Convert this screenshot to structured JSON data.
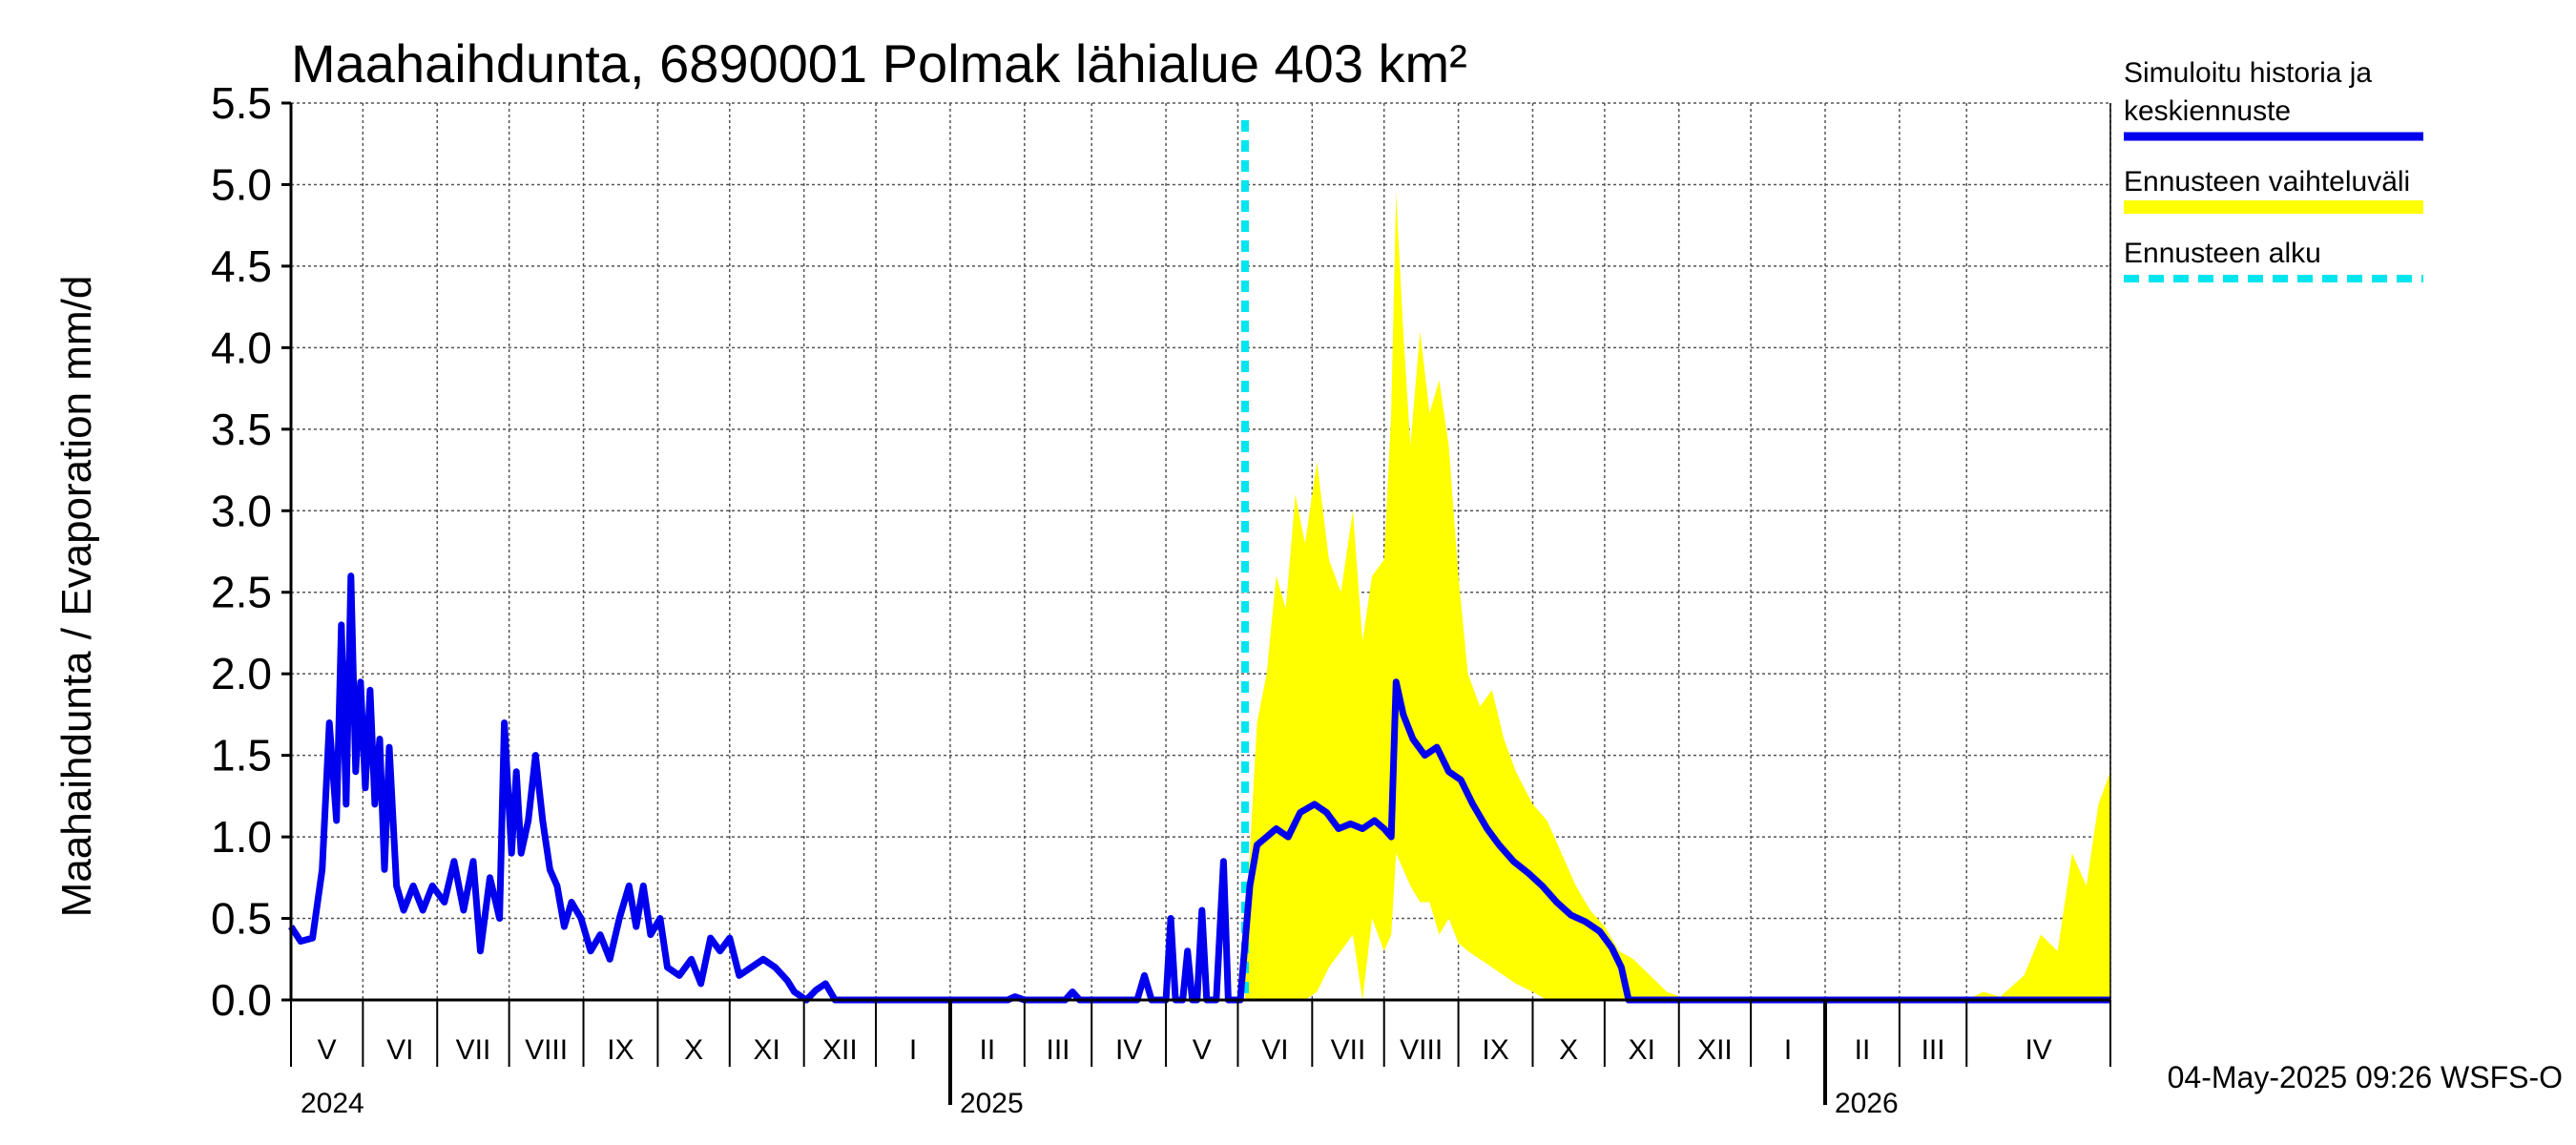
{
  "chart_data": {
    "type": "line",
    "title": "Maahaihdunta, 6890001 Polmak lähialue 403 km²",
    "ylabel": "Maahaihdunta / Evaporation   mm/d",
    "ylim": [
      0,
      5.5
    ],
    "yticks": [
      "0.0",
      "0.5",
      "1.0",
      "1.5",
      "2.0",
      "2.5",
      "3.0",
      "3.5",
      "4.0",
      "4.5",
      "5.0",
      "5.5"
    ],
    "x_range": [
      "2024-04-01",
      "2026-04-30"
    ],
    "grid": true,
    "legend_position": "right",
    "months": [
      "V",
      "VI",
      "VII",
      "VIII",
      "IX",
      "X",
      "XI",
      "XII",
      "I",
      "II",
      "III",
      "IV",
      "V",
      "VI",
      "VII",
      "VIII",
      "IX",
      "X",
      "XI",
      "XII",
      "I",
      "II",
      "III",
      "IV"
    ],
    "years": [
      "2024",
      "2025",
      "2026"
    ],
    "forecast_start": "2025-05-04",
    "timestamp": "04-May-2025 09:26 WSFS-O",
    "series": [
      {
        "name": "Simuloitu historia ja keskiennuste",
        "color": "#0000ee",
        "points": [
          [
            "2024-04-01",
            0.45
          ],
          [
            "2024-04-05",
            0.36
          ],
          [
            "2024-04-10",
            0.38
          ],
          [
            "2024-04-14",
            0.8
          ],
          [
            "2024-04-17",
            1.7
          ],
          [
            "2024-04-20",
            1.1
          ],
          [
            "2024-04-22",
            2.3
          ],
          [
            "2024-04-24",
            1.2
          ],
          [
            "2024-04-26",
            2.6
          ],
          [
            "2024-04-28",
            1.4
          ],
          [
            "2024-04-30",
            1.95
          ],
          [
            "2024-05-02",
            1.3
          ],
          [
            "2024-05-04",
            1.9
          ],
          [
            "2024-05-06",
            1.2
          ],
          [
            "2024-05-08",
            1.6
          ],
          [
            "2024-05-10",
            0.8
          ],
          [
            "2024-05-12",
            1.55
          ],
          [
            "2024-05-15",
            0.7
          ],
          [
            "2024-05-18",
            0.55
          ],
          [
            "2024-05-22",
            0.7
          ],
          [
            "2024-05-26",
            0.55
          ],
          [
            "2024-05-30",
            0.7
          ],
          [
            "2024-06-04",
            0.6
          ],
          [
            "2024-06-08",
            0.85
          ],
          [
            "2024-06-12",
            0.55
          ],
          [
            "2024-06-16",
            0.85
          ],
          [
            "2024-06-19",
            0.3
          ],
          [
            "2024-06-23",
            0.75
          ],
          [
            "2024-06-27",
            0.5
          ],
          [
            "2024-06-29",
            1.7
          ],
          [
            "2024-07-02",
            0.9
          ],
          [
            "2024-07-04",
            1.4
          ],
          [
            "2024-07-06",
            0.9
          ],
          [
            "2024-07-09",
            1.1
          ],
          [
            "2024-07-12",
            1.5
          ],
          [
            "2024-07-15",
            1.1
          ],
          [
            "2024-07-18",
            0.8
          ],
          [
            "2024-07-21",
            0.7
          ],
          [
            "2024-07-24",
            0.45
          ],
          [
            "2024-07-27",
            0.6
          ],
          [
            "2024-07-31",
            0.5
          ],
          [
            "2024-08-04",
            0.3
          ],
          [
            "2024-08-08",
            0.4
          ],
          [
            "2024-08-12",
            0.25
          ],
          [
            "2024-08-16",
            0.5
          ],
          [
            "2024-08-20",
            0.7
          ],
          [
            "2024-08-23",
            0.45
          ],
          [
            "2024-08-26",
            0.7
          ],
          [
            "2024-08-29",
            0.4
          ],
          [
            "2024-09-02",
            0.5
          ],
          [
            "2024-09-05",
            0.2
          ],
          [
            "2024-09-10",
            0.15
          ],
          [
            "2024-09-15",
            0.25
          ],
          [
            "2024-09-19",
            0.1
          ],
          [
            "2024-09-23",
            0.38
          ],
          [
            "2024-09-27",
            0.3
          ],
          [
            "2024-10-01",
            0.38
          ],
          [
            "2024-10-05",
            0.15
          ],
          [
            "2024-10-10",
            0.2
          ],
          [
            "2024-10-15",
            0.25
          ],
          [
            "2024-10-20",
            0.2
          ],
          [
            "2024-10-25",
            0.12
          ],
          [
            "2024-10-28",
            0.05
          ],
          [
            "2024-11-02",
            0.0
          ],
          [
            "2024-11-06",
            0.06
          ],
          [
            "2024-11-10",
            0.1
          ],
          [
            "2024-11-14",
            0.0
          ],
          [
            "2025-01-25",
            0.0
          ],
          [
            "2025-01-28",
            0.02
          ],
          [
            "2025-02-01",
            0.0
          ],
          [
            "2025-02-18",
            0.0
          ],
          [
            "2025-02-21",
            0.05
          ],
          [
            "2025-02-24",
            0.0
          ],
          [
            "2025-03-20",
            0.0
          ],
          [
            "2025-03-23",
            0.15
          ],
          [
            "2025-03-26",
            0.0
          ],
          [
            "2025-04-01",
            0.0
          ],
          [
            "2025-04-03",
            0.5
          ],
          [
            "2025-04-05",
            0.0
          ],
          [
            "2025-04-08",
            0.0
          ],
          [
            "2025-04-10",
            0.3
          ],
          [
            "2025-04-12",
            0.0
          ],
          [
            "2025-04-14",
            0.0
          ],
          [
            "2025-04-16",
            0.55
          ],
          [
            "2025-04-18",
            0.0
          ],
          [
            "2025-04-22",
            0.0
          ],
          [
            "2025-04-25",
            0.85
          ],
          [
            "2025-04-27",
            0.0
          ],
          [
            "2025-05-02",
            0.0
          ],
          [
            "2025-05-04",
            0.35
          ],
          [
            "2025-05-06",
            0.7
          ],
          [
            "2025-05-09",
            0.95
          ],
          [
            "2025-05-13",
            1.0
          ],
          [
            "2025-05-17",
            1.05
          ],
          [
            "2025-05-22",
            1.0
          ],
          [
            "2025-05-27",
            1.15
          ],
          [
            "2025-06-02",
            1.2
          ],
          [
            "2025-06-07",
            1.15
          ],
          [
            "2025-06-12",
            1.05
          ],
          [
            "2025-06-17",
            1.08
          ],
          [
            "2025-06-22",
            1.05
          ],
          [
            "2025-06-27",
            1.1
          ],
          [
            "2025-07-01",
            1.05
          ],
          [
            "2025-07-04",
            1.0
          ],
          [
            "2025-07-06",
            1.95
          ],
          [
            "2025-07-09",
            1.75
          ],
          [
            "2025-07-13",
            1.6
          ],
          [
            "2025-07-18",
            1.5
          ],
          [
            "2025-07-23",
            1.55
          ],
          [
            "2025-07-28",
            1.4
          ],
          [
            "2025-08-02",
            1.35
          ],
          [
            "2025-08-07",
            1.2
          ],
          [
            "2025-08-13",
            1.05
          ],
          [
            "2025-08-18",
            0.95
          ],
          [
            "2025-08-24",
            0.85
          ],
          [
            "2025-08-30",
            0.78
          ],
          [
            "2025-09-05",
            0.7
          ],
          [
            "2025-09-11",
            0.6
          ],
          [
            "2025-09-17",
            0.52
          ],
          [
            "2025-09-23",
            0.48
          ],
          [
            "2025-09-29",
            0.42
          ],
          [
            "2025-10-04",
            0.32
          ],
          [
            "2025-10-08",
            0.2
          ],
          [
            "2025-10-11",
            0.0
          ],
          [
            "2026-04-30",
            0.0
          ]
        ]
      },
      {
        "name": "Ennusteen vaihteluväli",
        "color": "#ffff00",
        "band": [
          [
            "2025-05-04",
            0.0,
            0.4
          ],
          [
            "2025-05-06",
            0.0,
            0.9
          ],
          [
            "2025-05-09",
            0.0,
            1.7
          ],
          [
            "2025-05-13",
            0.0,
            2.0
          ],
          [
            "2025-05-17",
            0.0,
            2.6
          ],
          [
            "2025-05-21",
            0.0,
            2.4
          ],
          [
            "2025-05-25",
            0.0,
            3.1
          ],
          [
            "2025-05-29",
            0.0,
            2.8
          ],
          [
            "2025-06-03",
            0.05,
            3.3
          ],
          [
            "2025-06-08",
            0.2,
            2.7
          ],
          [
            "2025-06-13",
            0.3,
            2.5
          ],
          [
            "2025-06-18",
            0.4,
            3.0
          ],
          [
            "2025-06-22",
            0.0,
            2.2
          ],
          [
            "2025-06-26",
            0.5,
            2.6
          ],
          [
            "2025-07-01",
            0.3,
            2.7
          ],
          [
            "2025-07-04",
            0.4,
            3.6
          ],
          [
            "2025-07-06",
            0.9,
            4.95
          ],
          [
            "2025-07-09",
            0.8,
            4.1
          ],
          [
            "2025-07-12",
            0.7,
            3.4
          ],
          [
            "2025-07-16",
            0.6,
            4.1
          ],
          [
            "2025-07-20",
            0.6,
            3.6
          ],
          [
            "2025-07-24",
            0.4,
            3.8
          ],
          [
            "2025-07-28",
            0.5,
            3.4
          ],
          [
            "2025-08-01",
            0.35,
            2.6
          ],
          [
            "2025-08-05",
            0.3,
            2.0
          ],
          [
            "2025-08-10",
            0.25,
            1.8
          ],
          [
            "2025-08-15",
            0.2,
            1.9
          ],
          [
            "2025-08-20",
            0.15,
            1.6
          ],
          [
            "2025-08-25",
            0.1,
            1.4
          ],
          [
            "2025-09-01",
            0.05,
            1.2
          ],
          [
            "2025-09-07",
            0.0,
            1.1
          ],
          [
            "2025-09-13",
            0.0,
            0.9
          ],
          [
            "2025-09-19",
            0.0,
            0.7
          ],
          [
            "2025-09-25",
            0.0,
            0.55
          ],
          [
            "2025-10-01",
            0.0,
            0.45
          ],
          [
            "2025-10-07",
            0.0,
            0.3
          ],
          [
            "2025-10-13",
            0.0,
            0.25
          ],
          [
            "2025-10-20",
            0.0,
            0.15
          ],
          [
            "2025-10-27",
            0.0,
            0.05
          ],
          [
            "2025-11-05",
            0.0,
            0.0
          ],
          [
            "2026-03-01",
            0.0,
            0.0
          ],
          [
            "2026-03-08",
            0.0,
            0.05
          ],
          [
            "2026-03-15",
            0.0,
            0.02
          ],
          [
            "2026-03-25",
            0.0,
            0.15
          ],
          [
            "2026-04-01",
            0.0,
            0.4
          ],
          [
            "2026-04-08",
            0.0,
            0.3
          ],
          [
            "2026-04-14",
            0.0,
            0.9
          ],
          [
            "2026-04-20",
            0.0,
            0.7
          ],
          [
            "2026-04-25",
            0.0,
            1.2
          ],
          [
            "2026-04-30",
            0.0,
            1.4
          ]
        ]
      },
      {
        "name": "Ennusteen alku",
        "color": "#00e5ee"
      }
    ]
  }
}
